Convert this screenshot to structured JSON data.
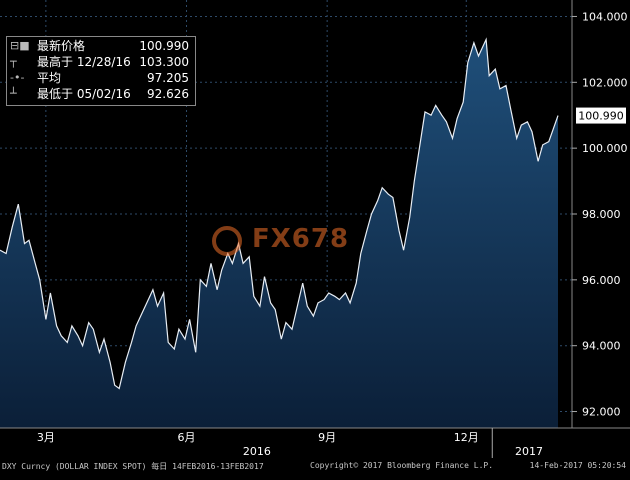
{
  "chart_data": {
    "type": "area",
    "x_range": [
      "2016-02-14",
      "2017-02-13"
    ],
    "ylim": [
      91.5,
      104.5
    ],
    "y_ticks": [
      "104.000",
      "102.000",
      "100.000",
      "98.000",
      "96.000",
      "94.000",
      "92.000"
    ],
    "x_ticks": [
      "3月",
      "6月",
      "9月",
      "12月"
    ],
    "x_years": [
      "2016",
      "2017"
    ],
    "last_value_label": "100.990",
    "grid": true,
    "series": [
      {
        "x": [
          "2016-02-14",
          "2016-02-18",
          "2016-02-22",
          "2016-02-26",
          "2016-03-01",
          "2016-03-04",
          "2016-03-08",
          "2016-03-11",
          "2016-03-15",
          "2016-03-18",
          "2016-03-22",
          "2016-03-25",
          "2016-03-29",
          "2016-04-01",
          "2016-04-05",
          "2016-04-08",
          "2016-04-12",
          "2016-04-15",
          "2016-04-19",
          "2016-04-22",
          "2016-04-26",
          "2016-04-29",
          "2016-05-02",
          "2016-05-06",
          "2016-05-10",
          "2016-05-13",
          "2016-05-17",
          "2016-05-20",
          "2016-05-24",
          "2016-05-27",
          "2016-05-31",
          "2016-06-03",
          "2016-06-07",
          "2016-06-10",
          "2016-06-14",
          "2016-06-17",
          "2016-06-21",
          "2016-06-24",
          "2016-06-28",
          "2016-07-01",
          "2016-07-05",
          "2016-07-08",
          "2016-07-12",
          "2016-07-15",
          "2016-07-19",
          "2016-07-22",
          "2016-07-26",
          "2016-07-29",
          "2016-08-02",
          "2016-08-05",
          "2016-08-09",
          "2016-08-12",
          "2016-08-16",
          "2016-08-19",
          "2016-08-23",
          "2016-08-26",
          "2016-08-30",
          "2016-09-02",
          "2016-09-06",
          "2016-09-09",
          "2016-09-13",
          "2016-09-16",
          "2016-09-20",
          "2016-09-23",
          "2016-09-27",
          "2016-09-30",
          "2016-10-04",
          "2016-10-07",
          "2016-10-11",
          "2016-10-14",
          "2016-10-18",
          "2016-10-21",
          "2016-10-25",
          "2016-10-28",
          "2016-11-01",
          "2016-11-04",
          "2016-11-08",
          "2016-11-11",
          "2016-11-15",
          "2016-11-18",
          "2016-11-22",
          "2016-11-25",
          "2016-11-29",
          "2016-12-02",
          "2016-12-06",
          "2016-12-09",
          "2016-12-13",
          "2016-12-16",
          "2016-12-20",
          "2016-12-23",
          "2016-12-28",
          "2016-12-30",
          "2017-01-03",
          "2017-01-06",
          "2017-01-10",
          "2017-01-13",
          "2017-01-17",
          "2017-01-20",
          "2017-01-24",
          "2017-01-27",
          "2017-01-31",
          "2017-02-03",
          "2017-02-07",
          "2017-02-13"
        ],
        "values": [
          96.9,
          96.8,
          97.6,
          98.3,
          97.1,
          97.2,
          96.5,
          96.0,
          94.8,
          95.6,
          94.6,
          94.3,
          94.1,
          94.6,
          94.3,
          94.0,
          94.7,
          94.5,
          93.8,
          94.2,
          93.5,
          92.8,
          92.7,
          93.5,
          94.1,
          94.6,
          95.0,
          95.3,
          95.7,
          95.2,
          95.6,
          94.1,
          93.9,
          94.5,
          94.2,
          94.8,
          93.8,
          96.0,
          95.8,
          96.5,
          95.7,
          96.3,
          96.8,
          96.5,
          97.1,
          96.5,
          96.7,
          95.5,
          95.2,
          96.1,
          95.3,
          95.1,
          94.2,
          94.7,
          94.5,
          95.1,
          95.9,
          95.2,
          94.9,
          95.3,
          95.4,
          95.6,
          95.5,
          95.4,
          95.6,
          95.3,
          95.9,
          96.8,
          97.5,
          98.0,
          98.4,
          98.8,
          98.6,
          98.5,
          97.5,
          96.9,
          97.9,
          99.0,
          100.2,
          101.1,
          101.0,
          101.3,
          101.0,
          100.8,
          100.3,
          100.9,
          101.4,
          102.6,
          103.2,
          102.8,
          103.3,
          102.2,
          102.4,
          101.8,
          101.9,
          101.2,
          100.3,
          100.7,
          100.8,
          100.5,
          99.6,
          100.1,
          100.2,
          100.99
        ]
      }
    ]
  },
  "legend": {
    "rows": [
      {
        "label": "最新价格",
        "value": "100.990"
      },
      {
        "label": "最高于 12/28/16",
        "value": "103.300"
      },
      {
        "label": "平均",
        "value": "97.205"
      },
      {
        "label": "最低于 05/02/16",
        "value": "92.626"
      }
    ],
    "symbols": [
      "⊟■",
      "┬",
      "-•-",
      "┴"
    ]
  },
  "footer": {
    "left": "DXY Curncy (DOLLAR INDEX SPOT)  每日 14FEB2016-13FEB2017",
    "mid": "Copyright© 2017 Bloomberg Finance L.P.",
    "right": "14-Feb-2017 05:20:54"
  },
  "watermark": "FX678",
  "colors": {
    "area_top": "#1f4f7a",
    "area_bottom": "#0b1f38",
    "line": "#e8eef5",
    "grid": "#2e4a68",
    "tag_bg": "#ffffff"
  }
}
